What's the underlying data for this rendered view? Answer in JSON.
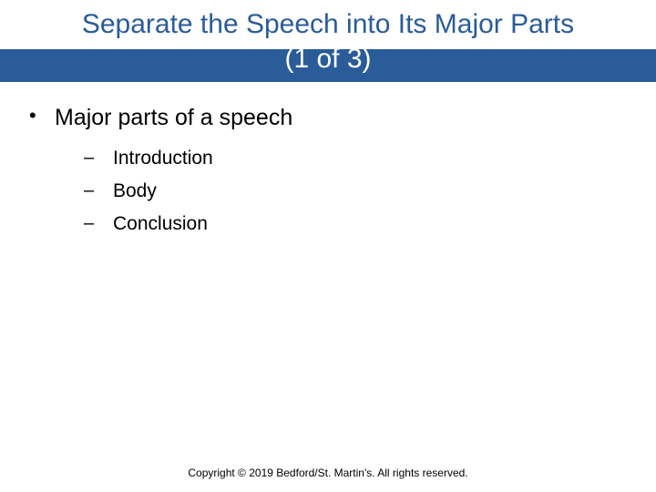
{
  "slide": {
    "title_line1": "Separate the Speech into Its Major Parts",
    "title_line2": "(1 of 3)",
    "title_color": "#2a5c99",
    "title_band_color": "#2a5c99",
    "title_fontsize": 30,
    "background_color": "#ffffff"
  },
  "content": {
    "main_bullet": {
      "marker": "•",
      "text": "Major parts of a speech",
      "fontsize": 25,
      "color": "#000000"
    },
    "sub_bullets": [
      {
        "marker": "–",
        "text": "Introduction"
      },
      {
        "marker": "–",
        "text": "Body"
      },
      {
        "marker": "–",
        "text": "Conclusion"
      }
    ],
    "sub_bullet_fontsize": 21,
    "sub_bullet_color": "#000000"
  },
  "footer": {
    "text": "Copyright © 2019 Bedford/St. Martin's. All rights reserved.",
    "fontsize": 12,
    "color": "#000000"
  }
}
